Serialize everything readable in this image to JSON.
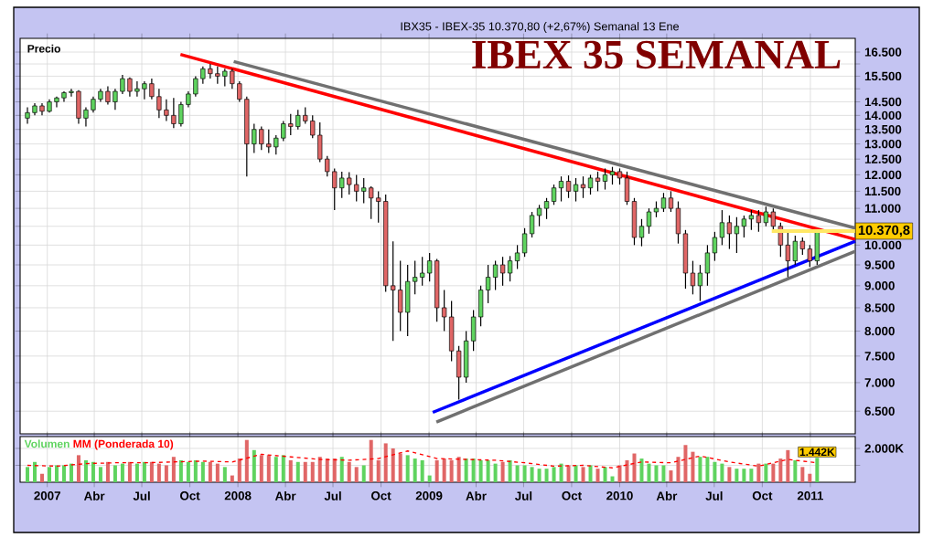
{
  "chart_data": [
    {
      "type": "candlestick",
      "title": "IBEX 35 SEMANAL",
      "subtitle": "IBX35 - IBEX-35 10.370,80 (+2,67%) Semanal 13 Ene",
      "ylabel": "Precio",
      "x": [
        "2006-11-24",
        "2006-12-08",
        "2006-12-22",
        "2007-01-05",
        "2007-01-19",
        "2007-02-02",
        "2007-02-16",
        "2007-03-02",
        "2007-03-16",
        "2007-03-30",
        "2007-04-13",
        "2007-04-27",
        "2007-05-11",
        "2007-05-25",
        "2007-06-08",
        "2007-06-22",
        "2007-07-06",
        "2007-07-20",
        "2007-08-03",
        "2007-08-17",
        "2007-08-31",
        "2007-09-14",
        "2007-09-28",
        "2007-10-12",
        "2007-10-26",
        "2007-11-09",
        "2007-11-23",
        "2007-12-07",
        "2007-12-21",
        "2008-01-04",
        "2008-01-18",
        "2008-02-01",
        "2008-02-15",
        "2008-02-29",
        "2008-03-14",
        "2008-03-28",
        "2008-04-11",
        "2008-04-25",
        "2008-05-09",
        "2008-05-23",
        "2008-06-06",
        "2008-06-20",
        "2008-07-04",
        "2008-07-18",
        "2008-08-01",
        "2008-08-15",
        "2008-08-29",
        "2008-09-12",
        "2008-09-26",
        "2008-10-10",
        "2008-10-24",
        "2008-11-07",
        "2008-11-21",
        "2008-12-05",
        "2008-12-19",
        "2009-01-02",
        "2009-01-16",
        "2009-01-30",
        "2009-02-13",
        "2009-02-27",
        "2009-03-13",
        "2009-03-27",
        "2009-04-10",
        "2009-04-24",
        "2009-05-08",
        "2009-05-22",
        "2009-06-05",
        "2009-06-19",
        "2009-07-03",
        "2009-07-17",
        "2009-07-31",
        "2009-08-14",
        "2009-08-28",
        "2009-09-11",
        "2009-09-25",
        "2009-10-09",
        "2009-10-23",
        "2009-11-06",
        "2009-11-20",
        "2009-12-04",
        "2009-12-18",
        "2010-01-01",
        "2010-01-15",
        "2010-01-29",
        "2010-02-12",
        "2010-02-26",
        "2010-03-12",
        "2010-03-26",
        "2010-04-09",
        "2010-04-23",
        "2010-05-07",
        "2010-05-21",
        "2010-06-04",
        "2010-06-18",
        "2010-07-02",
        "2010-07-16",
        "2010-07-30",
        "2010-08-13",
        "2010-08-27",
        "2010-09-10",
        "2010-09-24",
        "2010-10-08",
        "2010-10-22",
        "2010-11-05",
        "2010-11-19",
        "2010-12-03",
        "2010-12-17",
        "2010-12-31",
        "2011-01-14"
      ],
      "ohlc": [
        [
          13900,
          14300,
          13700,
          14100
        ],
        [
          14100,
          14450,
          14000,
          14350
        ],
        [
          14350,
          14450,
          14000,
          14150
        ],
        [
          14150,
          14600,
          14100,
          14500
        ],
        [
          14500,
          14700,
          14300,
          14650
        ],
        [
          14650,
          14900,
          14500,
          14850
        ],
        [
          14850,
          15000,
          14700,
          14900
        ],
        [
          14900,
          14950,
          13700,
          13900
        ],
        [
          13900,
          14300,
          13600,
          14200
        ],
        [
          14200,
          14700,
          14100,
          14600
        ],
        [
          14600,
          15000,
          14500,
          14900
        ],
        [
          14900,
          15100,
          14400,
          14500
        ],
        [
          14500,
          15000,
          14200,
          14900
        ],
        [
          14900,
          15550,
          14800,
          15400
        ],
        [
          15400,
          15450,
          14700,
          14900
        ],
        [
          14900,
          15300,
          14700,
          15000
        ],
        [
          15000,
          15300,
          14600,
          15200
        ],
        [
          15200,
          15400,
          14600,
          14700
        ],
        [
          14700,
          15000,
          13900,
          14200
        ],
        [
          14200,
          14600,
          13800,
          14000
        ],
        [
          14000,
          14650,
          13550,
          13700
        ],
        [
          13700,
          14500,
          13600,
          14400
        ],
        [
          14400,
          14900,
          14300,
          14800
        ],
        [
          14800,
          15500,
          14700,
          15400
        ],
        [
          15400,
          15900,
          15200,
          15800
        ],
        [
          15800,
          16000,
          15400,
          15600
        ],
        [
          15600,
          15900,
          15200,
          15500
        ],
        [
          15500,
          15800,
          15100,
          15700
        ],
        [
          15700,
          15800,
          15000,
          15200
        ],
        [
          15200,
          15300,
          14500,
          14600
        ],
        [
          14600,
          14700,
          11950,
          13000
        ],
        [
          13000,
          13700,
          12700,
          13500
        ],
        [
          13500,
          13600,
          12800,
          13000
        ],
        [
          13000,
          13500,
          12700,
          12900
        ],
        [
          12900,
          13300,
          12650,
          13200
        ],
        [
          13200,
          13800,
          13100,
          13700
        ],
        [
          13700,
          14050,
          13300,
          13600
        ],
        [
          13600,
          14200,
          13500,
          14000
        ],
        [
          14000,
          14300,
          13700,
          13800
        ],
        [
          13800,
          14000,
          13200,
          13300
        ],
        [
          13300,
          13750,
          12400,
          12500
        ],
        [
          12500,
          12600,
          11950,
          12100
        ],
        [
          12100,
          12200,
          10950,
          11600
        ],
        [
          11600,
          12100,
          11300,
          11900
        ],
        [
          11900,
          12080,
          11400,
          11700
        ],
        [
          11700,
          12000,
          11200,
          11500
        ],
        [
          11500,
          11900,
          11150,
          11600
        ],
        [
          11600,
          11650,
          10700,
          11300
        ],
        [
          11300,
          11500,
          10600,
          11200
        ],
        [
          11200,
          11400,
          8860,
          9000
        ],
        [
          9000,
          10100,
          7800,
          8900
        ],
        [
          8900,
          9600,
          8000,
          8400
        ],
        [
          8400,
          9500,
          7900,
          9100
        ],
        [
          9100,
          9600,
          8800,
          9200
        ],
        [
          9200,
          9700,
          9000,
          9300
        ],
        [
          9300,
          9800,
          9100,
          9600
        ],
        [
          9600,
          9650,
          8200,
          8500
        ],
        [
          8500,
          8900,
          8000,
          8300
        ],
        [
          8300,
          8650,
          7400,
          7600
        ],
        [
          7600,
          7700,
          6700,
          7100
        ],
        [
          7100,
          8000,
          7000,
          7800
        ],
        [
          7800,
          8450,
          7600,
          8300
        ],
        [
          8300,
          9000,
          8100,
          8900
        ],
        [
          8900,
          9500,
          8600,
          9200
        ],
        [
          9200,
          9600,
          8900,
          9500
        ],
        [
          9500,
          9700,
          9000,
          9300
        ],
        [
          9300,
          9720,
          9100,
          9600
        ],
        [
          9600,
          10000,
          9400,
          9800
        ],
        [
          9800,
          10450,
          9700,
          10300
        ],
        [
          10300,
          10900,
          10200,
          10800
        ],
        [
          10800,
          11100,
          10500,
          11000
        ],
        [
          11000,
          11300,
          10700,
          11200
        ],
        [
          11200,
          11700,
          11100,
          11600
        ],
        [
          11600,
          11950,
          11200,
          11800
        ],
        [
          11800,
          11980,
          11300,
          11500
        ],
        [
          11500,
          11900,
          11200,
          11700
        ],
        [
          11700,
          11950,
          11300,
          11600
        ],
        [
          11600,
          12000,
          11400,
          11900
        ],
        [
          11900,
          12100,
          11500,
          11800
        ],
        [
          11800,
          12200,
          11550,
          12000
        ],
        [
          12000,
          12250,
          11700,
          12100
        ],
        [
          12100,
          12200,
          11700,
          11900
        ],
        [
          11900,
          12100,
          11100,
          11200
        ],
        [
          11200,
          11300,
          10000,
          10200
        ],
        [
          10200,
          10700,
          9970,
          10500
        ],
        [
          10500,
          11000,
          10300,
          10900
        ],
        [
          10900,
          11200,
          10750,
          11000
        ],
        [
          11000,
          11450,
          10900,
          11300
        ],
        [
          11300,
          11500,
          10900,
          11000
        ],
        [
          11000,
          11200,
          10040,
          10300
        ],
        [
          10300,
          10400,
          8930,
          9300
        ],
        [
          9300,
          9600,
          8800,
          9000
        ],
        [
          9000,
          9500,
          8650,
          9300
        ],
        [
          9300,
          10000,
          9000,
          9800
        ],
        [
          9800,
          10350,
          9600,
          10200
        ],
        [
          10200,
          10950,
          10000,
          10600
        ],
        [
          10600,
          10800,
          9900,
          10300
        ],
        [
          10300,
          10750,
          9800,
          10500
        ],
        [
          10500,
          10800,
          10200,
          10700
        ],
        [
          10700,
          10950,
          10400,
          10800
        ],
        [
          10800,
          10950,
          10350,
          10600
        ],
        [
          10600,
          11050,
          10500,
          10900
        ],
        [
          10900,
          11000,
          10400,
          10500
        ],
        [
          10500,
          10600,
          9700,
          10000
        ],
        [
          10000,
          10400,
          9200,
          9600
        ],
        [
          9600,
          10250,
          9500,
          10100
        ],
        [
          10100,
          10200,
          9750,
          9900
        ],
        [
          9900,
          10000,
          9450,
          9600
        ],
        [
          9600,
          10400,
          9500,
          10370.8
        ]
      ],
      "series": [
        {
          "type": "line",
          "color": "#ff0000",
          "x": [
            "2007-09-13",
            "2011-03-28"
          ],
          "values": [
            16400,
            10150
          ]
        },
        {
          "type": "line",
          "color": "#707070",
          "x": [
            "2007-12-24",
            "2011-03-28"
          ],
          "values": [
            16100,
            10450
          ]
        },
        {
          "type": "line",
          "color": "#0000ff",
          "x": [
            "2009-01-08",
            "2011-03-28"
          ],
          "values": [
            6480,
            10100
          ]
        },
        {
          "type": "line",
          "color": "#707070",
          "x": [
            "2009-01-15",
            "2011-03-28"
          ],
          "values": [
            6320,
            9840
          ]
        }
      ],
      "xlim": [
        "2006-11-10",
        "2011-03-28"
      ],
      "ylim": [
        6130,
        17100
      ],
      "log": "y",
      "grid": true,
      "tick_labels": "y",
      "xticks": [
        {
          "value": "2007-01-01",
          "label": null
        },
        {
          "value": "2007-04-01",
          "label": null
        },
        {
          "value": "2007-07-01",
          "label": null
        },
        {
          "value": "2007-10-01",
          "label": null
        },
        {
          "value": "2008-01-01",
          "label": null
        },
        {
          "value": "2008-04-01",
          "label": null
        },
        {
          "value": "2008-07-01",
          "label": null
        },
        {
          "value": "2008-10-01",
          "label": null
        },
        {
          "value": "2009-01-01",
          "label": null
        },
        {
          "value": "2009-04-01",
          "label": null
        },
        {
          "value": "2009-07-01",
          "label": null
        },
        {
          "value": "2009-10-01",
          "label": null
        },
        {
          "value": "2010-01-01",
          "label": null
        },
        {
          "value": "2010-04-01",
          "label": null
        },
        {
          "value": "2010-07-01",
          "label": null
        },
        {
          "value": "2010-10-01",
          "label": null
        },
        {
          "value": "2011-01-01",
          "label": null
        }
      ],
      "yticks": [
        {
          "value": 6500,
          "label": "6.500"
        },
        {
          "value": 7000,
          "label": "7.000"
        },
        {
          "value": 7500,
          "label": "7.500"
        },
        {
          "value": 8000,
          "label": "8.000"
        },
        {
          "value": 8500,
          "label": "8.500"
        },
        {
          "value": 9000,
          "label": "9.000"
        },
        {
          "value": 9500,
          "label": "9.500"
        },
        {
          "value": 10000,
          "label": "10.000"
        },
        {
          "value": 10500,
          "label": null
        },
        {
          "value": 11000,
          "label": "11.000"
        },
        {
          "value": 11500,
          "label": "11.500"
        },
        {
          "value": 12000,
          "label": "12.000"
        },
        {
          "value": 12500,
          "label": "12.500"
        },
        {
          "value": 13000,
          "label": "13.000"
        },
        {
          "value": 13500,
          "label": "13.500"
        },
        {
          "value": 14000,
          "label": "14.000"
        },
        {
          "value": 14500,
          "label": "14.500"
        },
        {
          "value": 15000,
          "label": null
        },
        {
          "value": 15500,
          "label": "15.500"
        },
        {
          "value": 16000,
          "label": null
        },
        {
          "value": 16500,
          "label": "16.500"
        }
      ],
      "ref_lines": [
        {
          "axis": "y",
          "value": 10370.8,
          "label": "10.370,8",
          "color": "#ffe866"
        }
      ]
    },
    {
      "type": "bar",
      "x": [
        "2006-11-24",
        "2006-12-08",
        "2006-12-22",
        "2007-01-05",
        "2007-01-19",
        "2007-02-02",
        "2007-02-16",
        "2007-03-02",
        "2007-03-16",
        "2007-03-30",
        "2007-04-13",
        "2007-04-27",
        "2007-05-11",
        "2007-05-25",
        "2007-06-08",
        "2007-06-22",
        "2007-07-06",
        "2007-07-20",
        "2007-08-03",
        "2007-08-17",
        "2007-08-31",
        "2007-09-14",
        "2007-09-28",
        "2007-10-12",
        "2007-10-26",
        "2007-11-09",
        "2007-11-23",
        "2007-12-07",
        "2007-12-21",
        "2008-01-04",
        "2008-01-18",
        "2008-02-01",
        "2008-02-15",
        "2008-02-29",
        "2008-03-14",
        "2008-03-28",
        "2008-04-11",
        "2008-04-25",
        "2008-05-09",
        "2008-05-23",
        "2008-06-06",
        "2008-06-20",
        "2008-07-04",
        "2008-07-18",
        "2008-08-01",
        "2008-08-15",
        "2008-08-29",
        "2008-09-12",
        "2008-09-26",
        "2008-10-10",
        "2008-10-24",
        "2008-11-07",
        "2008-11-21",
        "2008-12-05",
        "2008-12-19",
        "2009-01-02",
        "2009-01-16",
        "2009-01-30",
        "2009-02-13",
        "2009-02-27",
        "2009-03-13",
        "2009-03-27",
        "2009-04-10",
        "2009-04-24",
        "2009-05-08",
        "2009-05-22",
        "2009-06-05",
        "2009-06-19",
        "2009-07-03",
        "2009-07-17",
        "2009-07-31",
        "2009-08-14",
        "2009-08-28",
        "2009-09-11",
        "2009-09-25",
        "2009-10-09",
        "2009-10-23",
        "2009-11-06",
        "2009-11-20",
        "2009-12-04",
        "2009-12-18",
        "2010-01-01",
        "2010-01-15",
        "2010-01-29",
        "2010-02-12",
        "2010-02-26",
        "2010-03-12",
        "2010-03-26",
        "2010-04-09",
        "2010-04-23",
        "2010-05-07",
        "2010-05-21",
        "2010-06-04",
        "2010-06-18",
        "2010-07-02",
        "2010-07-16",
        "2010-07-30",
        "2010-08-13",
        "2010-08-27",
        "2010-09-10",
        "2010-09-24",
        "2010-10-08",
        "2010-10-22",
        "2010-11-05",
        "2010-11-19",
        "2010-12-03",
        "2010-12-17",
        "2010-12-31",
        "2011-01-14"
      ],
      "series": [
        {
          "name": "Volumen",
          "color": "#5fd35f",
          "values": [
            900,
            1200,
            500,
            900,
            1000,
            1000,
            1100,
            1600,
            1300,
            1200,
            900,
            1200,
            1000,
            1100,
            1200,
            1100,
            1200,
            1200,
            1100,
            1000,
            1500,
            1300,
            1200,
            1300,
            1200,
            1200,
            1100,
            900,
            400,
            1400,
            2500,
            1900,
            1600,
            1600,
            1500,
            1600,
            1300,
            1200,
            1200,
            1200,
            1500,
            1400,
            1400,
            1500,
            1200,
            900,
            1000,
            2500,
            1300,
            2300,
            2000,
            1700,
            1600,
            1400,
            1300,
            400,
            1300,
            1400,
            1300,
            1500,
            1400,
            1400,
            1300,
            1300,
            1100,
            1200,
            1300,
            1000,
            1000,
            900,
            800,
            800,
            900,
            1100,
            1000,
            1000,
            900,
            1000,
            800,
            900,
            350,
            1000,
            1300,
            1700,
            1400,
            1100,
            1000,
            1000,
            700,
            1500,
            2200,
            1800,
            1500,
            1500,
            1200,
            1100,
            900,
            800,
            800,
            800,
            1100,
            1100,
            1100,
            1400,
            1900,
            1300,
            900,
            500,
            1442
          ],
          "colors": [
            "#5fd35f",
            "#5fd35f",
            "#e06666",
            "#5fd35f",
            "#5fd35f",
            "#5fd35f",
            "#5fd35f",
            "#e06666",
            "#5fd35f",
            "#5fd35f",
            "#5fd35f",
            "#e06666",
            "#5fd35f",
            "#5fd35f",
            "#e06666",
            "#5fd35f",
            "#5fd35f",
            "#e06666",
            "#e06666",
            "#e06666",
            "#e06666",
            "#5fd35f",
            "#5fd35f",
            "#5fd35f",
            "#5fd35f",
            "#e06666",
            "#e06666",
            "#5fd35f",
            "#e06666",
            "#e06666",
            "#e06666",
            "#5fd35f",
            "#e06666",
            "#e06666",
            "#5fd35f",
            "#5fd35f",
            "#e06666",
            "#5fd35f",
            "#e06666",
            "#e06666",
            "#e06666",
            "#e06666",
            "#e06666",
            "#5fd35f",
            "#e06666",
            "#e06666",
            "#5fd35f",
            "#e06666",
            "#e06666",
            "#e06666",
            "#e06666",
            "#e06666",
            "#5fd35f",
            "#5fd35f",
            "#5fd35f",
            "#5fd35f",
            "#e06666",
            "#e06666",
            "#e06666",
            "#e06666",
            "#5fd35f",
            "#5fd35f",
            "#5fd35f",
            "#5fd35f",
            "#5fd35f",
            "#e06666",
            "#5fd35f",
            "#5fd35f",
            "#5fd35f",
            "#5fd35f",
            "#5fd35f",
            "#5fd35f",
            "#5fd35f",
            "#5fd35f",
            "#e06666",
            "#5fd35f",
            "#e06666",
            "#5fd35f",
            "#e06666",
            "#5fd35f",
            "#5fd35f",
            "#e06666",
            "#e06666",
            "#e06666",
            "#5fd35f",
            "#5fd35f",
            "#5fd35f",
            "#5fd35f",
            "#e06666",
            "#e06666",
            "#e06666",
            "#e06666",
            "#5fd35f",
            "#5fd35f",
            "#5fd35f",
            "#5fd35f",
            "#e06666",
            "#5fd35f",
            "#5fd35f",
            "#5fd35f",
            "#e06666",
            "#5fd35f",
            "#e06666",
            "#e06666",
            "#e06666",
            "#5fd35f",
            "#e06666",
            "#e06666",
            "#5fd35f"
          ],
          "value_labels": [
            null,
            null,
            null,
            null,
            null,
            null,
            null,
            null,
            null,
            null,
            null,
            null,
            null,
            null,
            null,
            null,
            null,
            null,
            null,
            null,
            null,
            null,
            null,
            null,
            null,
            null,
            null,
            null,
            null,
            null,
            null,
            null,
            null,
            null,
            null,
            null,
            null,
            null,
            null,
            null,
            null,
            null,
            null,
            null,
            null,
            null,
            null,
            null,
            null,
            null,
            null,
            null,
            null,
            null,
            null,
            null,
            null,
            null,
            null,
            null,
            null,
            null,
            null,
            null,
            null,
            null,
            null,
            null,
            null,
            null,
            null,
            null,
            null,
            null,
            null,
            null,
            null,
            null,
            null,
            null,
            null,
            null,
            null,
            null,
            null,
            null,
            null,
            null,
            null,
            null,
            null,
            null,
            null,
            null,
            null,
            null,
            null,
            null,
            null,
            null,
            null,
            null,
            null,
            null,
            null,
            null,
            null,
            null,
            "1.442K"
          ]
        },
        {
          "name": "MM (Ponderada 10)",
          "type": "line",
          "color": "#ff0000",
          "line_style": "dashed",
          "x": [
            "2006-11-24",
            "2007-01-19",
            "2007-03-16",
            "2007-05-11",
            "2007-07-06",
            "2007-08-31",
            "2007-10-26",
            "2007-12-21",
            "2008-02-15",
            "2008-04-11",
            "2008-06-06",
            "2008-08-01",
            "2008-09-26",
            "2008-11-21",
            "2009-01-16",
            "2009-03-13",
            "2009-05-08",
            "2009-07-03",
            "2009-08-28",
            "2009-10-23",
            "2009-12-18",
            "2010-02-12",
            "2010-04-09",
            "2010-06-04",
            "2010-07-30",
            "2010-09-24",
            "2010-11-19",
            "2011-01-14"
          ],
          "values": [
            1000,
            950,
            1100,
            1150,
            1150,
            1200,
            1250,
            1200,
            1650,
            1500,
            1350,
            1300,
            1400,
            1850,
            1400,
            1350,
            1300,
            1150,
            950,
            1000,
            850,
            1200,
            1150,
            1550,
            1200,
            950,
            1350,
            1150
          ]
        }
      ],
      "xlim": [
        "2006-11-10",
        "2011-03-28"
      ],
      "ylim": [
        0,
        2700
      ],
      "grid": true,
      "legend": "top left",
      "xticks": [
        {
          "value": "2007-01-01",
          "label": "2007"
        },
        {
          "value": "2007-04-01",
          "label": "Abr"
        },
        {
          "value": "2007-07-01",
          "label": "Jul"
        },
        {
          "value": "2007-10-01",
          "label": "Oct"
        },
        {
          "value": "2008-01-01",
          "label": "2008"
        },
        {
          "value": "2008-04-01",
          "label": "Abr"
        },
        {
          "value": "2008-07-01",
          "label": "Jul"
        },
        {
          "value": "2008-10-01",
          "label": "Oct"
        },
        {
          "value": "2009-01-01",
          "label": "2009"
        },
        {
          "value": "2009-04-01",
          "label": "Abr"
        },
        {
          "value": "2009-07-01",
          "label": "Jul"
        },
        {
          "value": "2009-10-01",
          "label": "Oct"
        },
        {
          "value": "2010-01-01",
          "label": "2010"
        },
        {
          "value": "2010-04-01",
          "label": "Abr"
        },
        {
          "value": "2010-07-01",
          "label": "Jul"
        },
        {
          "value": "2010-10-01",
          "label": "Oct"
        },
        {
          "value": "2011-01-01",
          "label": "2011"
        }
      ],
      "yticks": [
        {
          "value": 1000,
          "label": null
        },
        {
          "value": 2000,
          "label": "2.000K"
        }
      ]
    }
  ]
}
